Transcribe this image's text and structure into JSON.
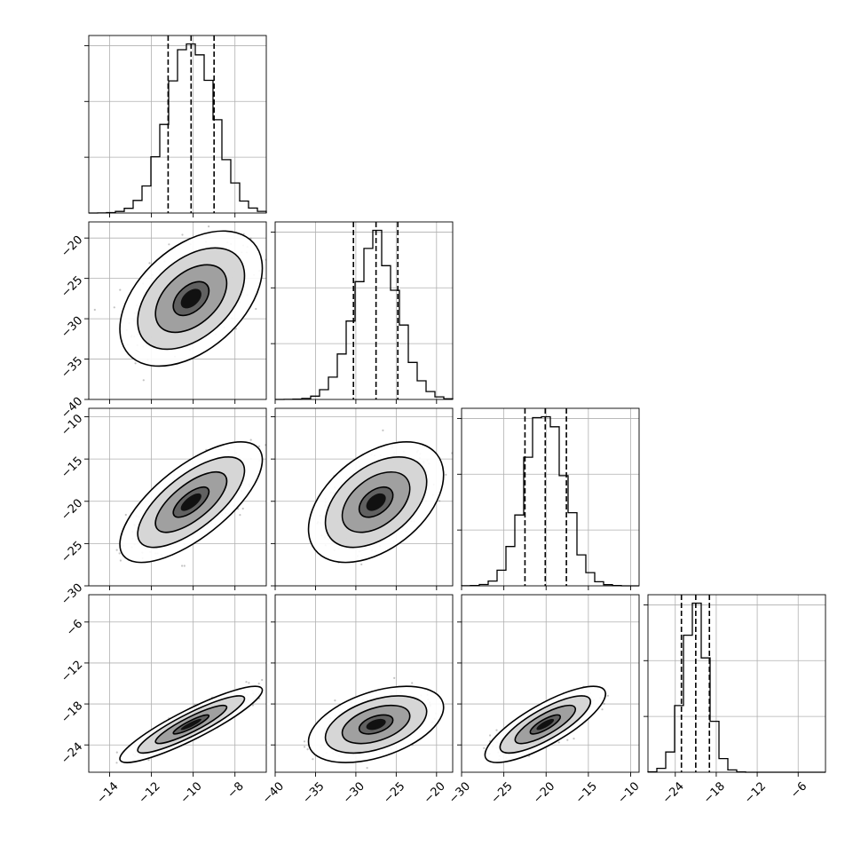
{
  "chart_data": {
    "type": "corner",
    "title": "",
    "parameter_labels": [
      "",
      "",
      "",
      ""
    ],
    "parameters": [
      {
        "index": 0,
        "range": [
          -15,
          -6.5
        ],
        "ticks": [
          -14,
          -12,
          -10,
          -8
        ],
        "tick_labels": [
          "−14",
          "−12",
          "−10",
          "−8"
        ],
        "quantiles": [
          -11.2,
          -10.1,
          -9.0
        ],
        "mean": -10.1,
        "sd": 1.1
      },
      {
        "index": 1,
        "range": [
          -40,
          -18
        ],
        "ticks": [
          -40,
          -35,
          -30,
          -25,
          -20
        ],
        "tick_labels": [
          "−40",
          "−35",
          "−30",
          "−25",
          "−20"
        ],
        "quantiles": [
          -30.3,
          -27.5,
          -24.8
        ],
        "mean": -27.5,
        "sd": 2.7
      },
      {
        "index": 2,
        "range": [
          -30,
          -9
        ],
        "ticks": [
          -30,
          -25,
          -20,
          -15,
          -10
        ],
        "tick_labels": [
          "−30",
          "−25",
          "−20",
          "−15",
          "−10"
        ],
        "quantiles": [
          -22.5,
          -20.1,
          -17.6
        ],
        "mean": -20.1,
        "sd": 2.3
      },
      {
        "index": 3,
        "range": [
          -28,
          -2
        ],
        "ticks": [
          -24,
          -18,
          -12,
          -6
        ],
        "tick_labels": [
          "−24",
          "−18",
          "−12",
          "−6"
        ],
        "quantiles": [
          -23.1,
          -21.0,
          -19.0
        ],
        "mean": -21.0,
        "sd": 1.8
      }
    ],
    "pairs": [
      {
        "x": 0,
        "y": 1,
        "correlation": 0.45
      },
      {
        "x": 0,
        "y": 2,
        "correlation": 0.7
      },
      {
        "x": 1,
        "y": 2,
        "correlation": 0.45
      },
      {
        "x": 0,
        "y": 3,
        "correlation": 0.9
      },
      {
        "x": 1,
        "y": 3,
        "correlation": 0.45
      },
      {
        "x": 2,
        "y": 3,
        "correlation": 0.8
      }
    ],
    "contour_levels_sigma": [
      0.5,
      1.0,
      1.5,
      2.0
    ],
    "histogram_bins": 20,
    "grid": true,
    "legend": "none",
    "colors": {
      "line": "#000000",
      "grid": "#b0b0b0",
      "points": "#7a7a7a",
      "fill_dark": "#1a1a1a"
    }
  }
}
